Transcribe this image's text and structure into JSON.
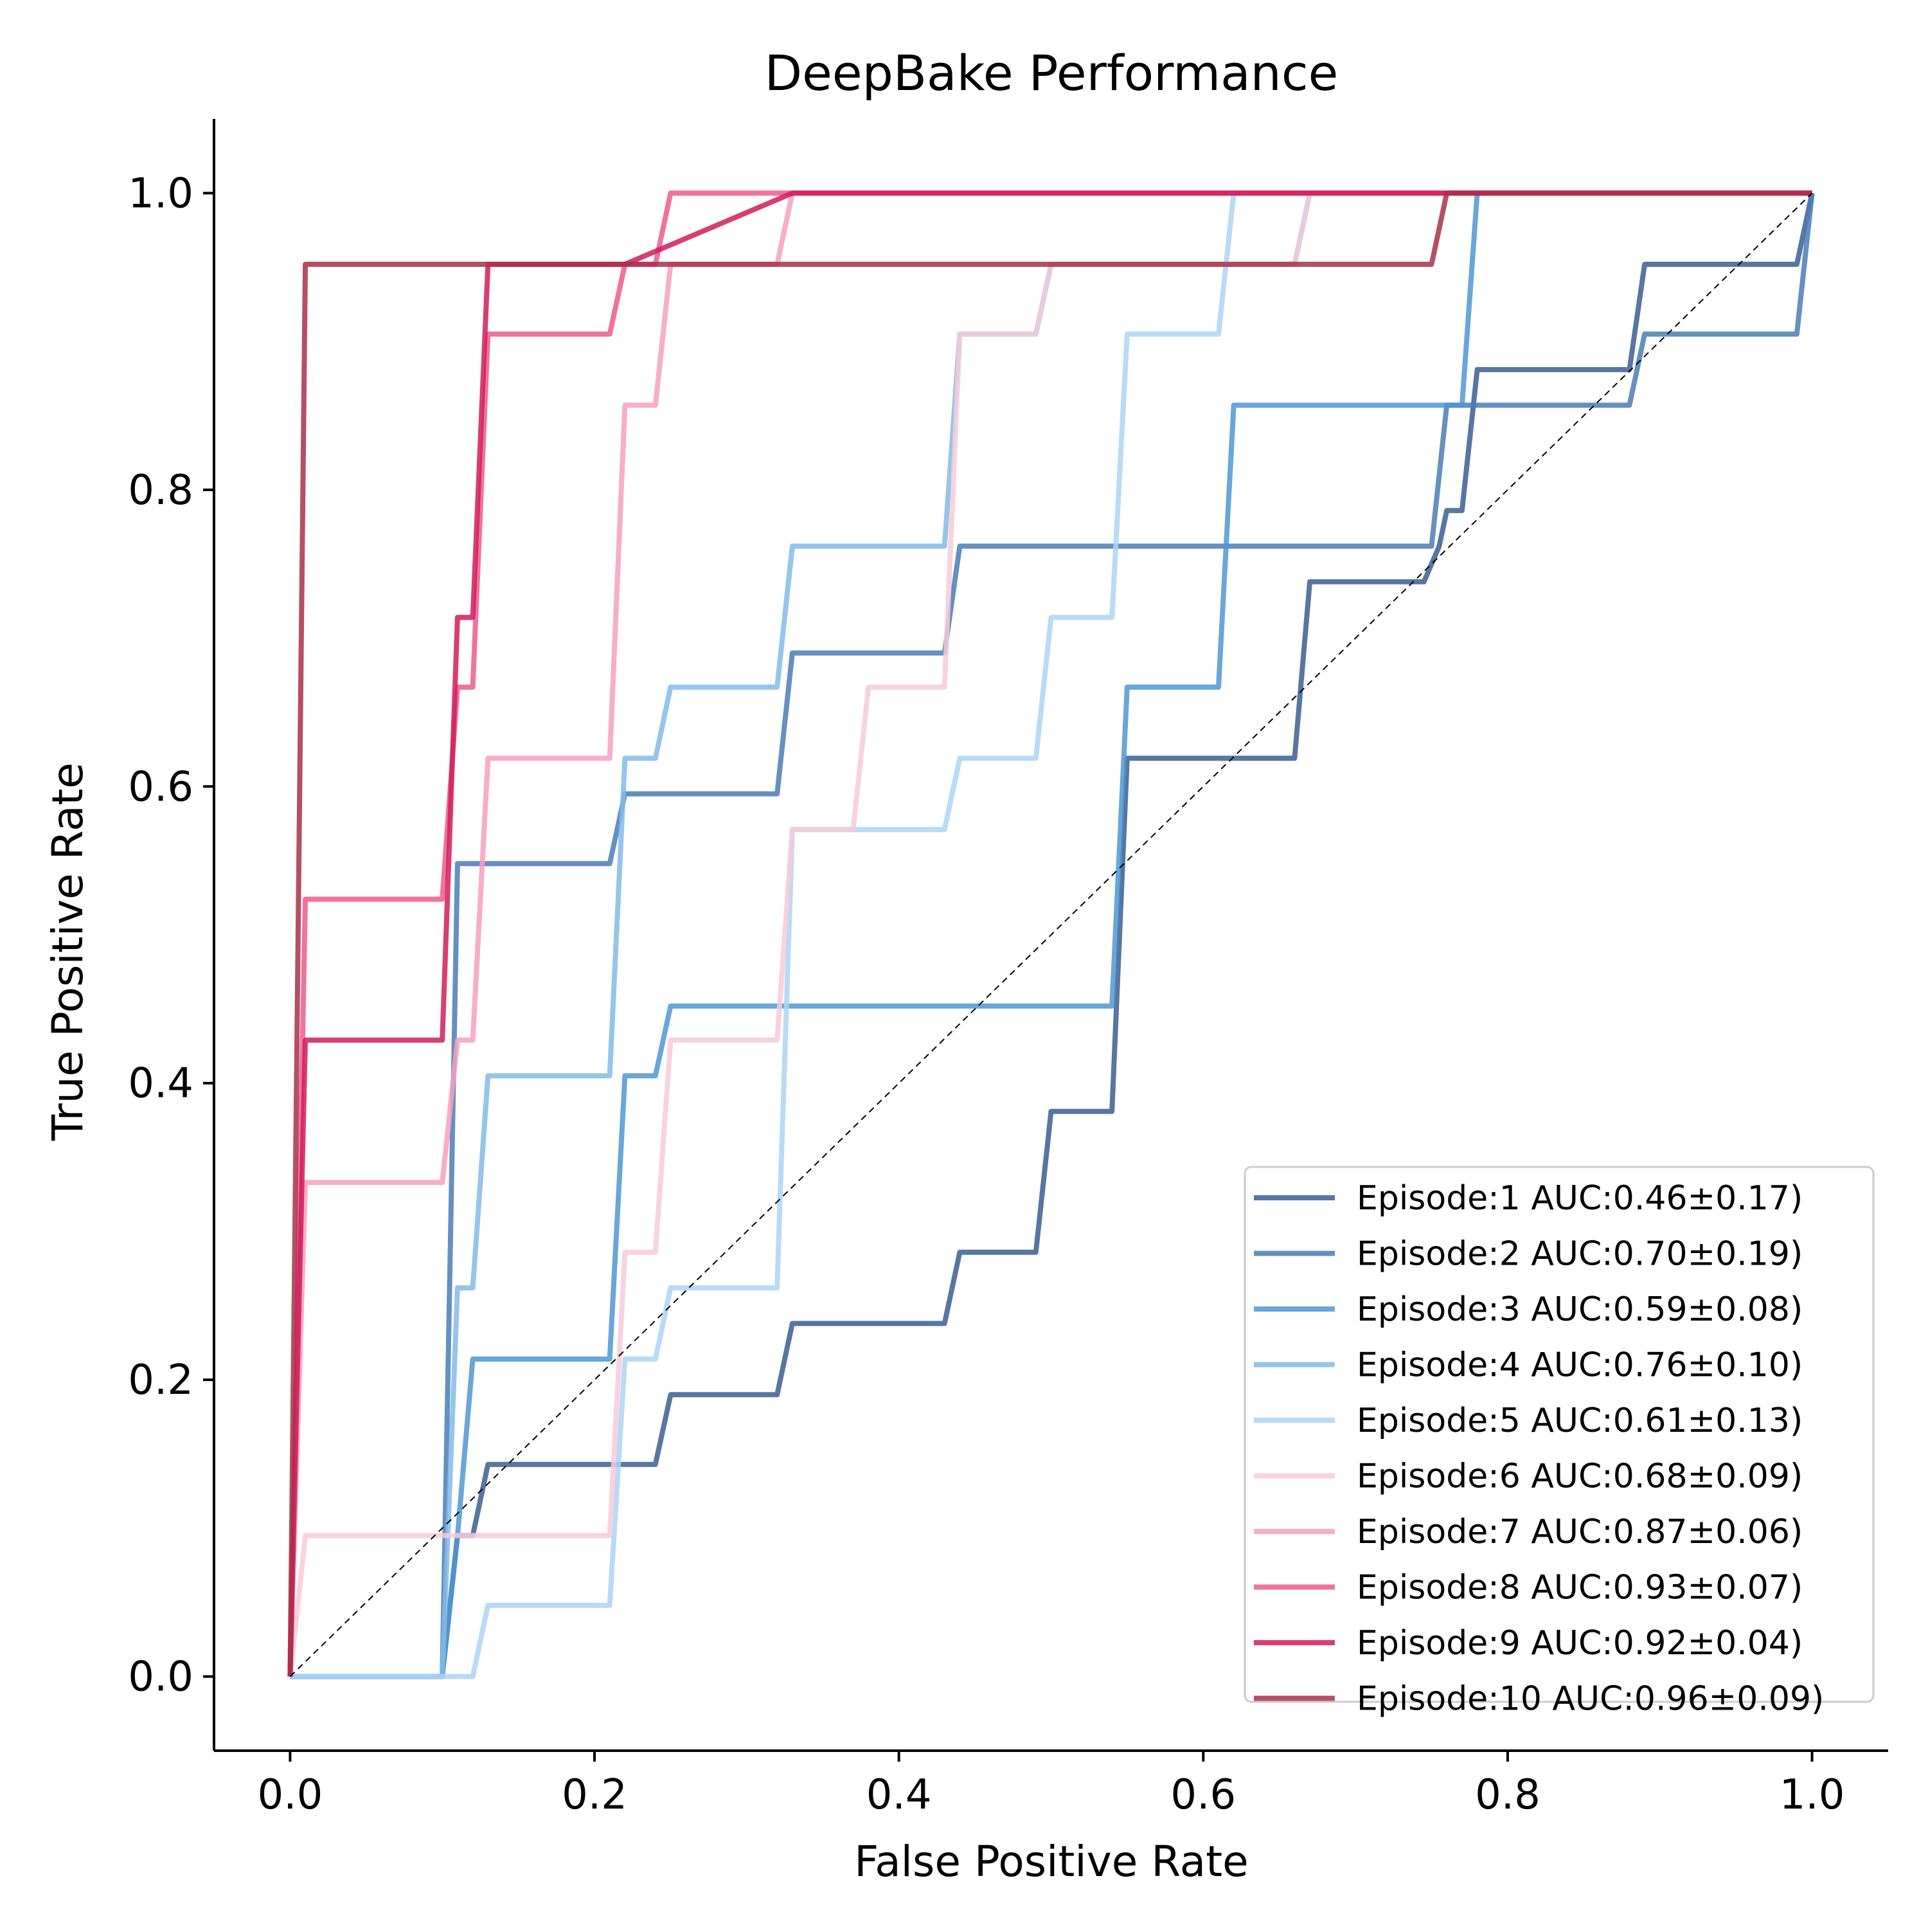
{
  "chart_data": {
    "type": "line",
    "title": "DeepBake Performance",
    "xlabel": "False Positive Rate",
    "ylabel": "True Positive Rate",
    "xlim": [
      -0.05,
      1.05
    ],
    "ylim": [
      -0.05,
      1.05
    ],
    "xticks": [
      "0.0",
      "0.2",
      "0.4",
      "0.6",
      "0.8",
      "1.0"
    ],
    "yticks": [
      "0.0",
      "0.2",
      "0.4",
      "0.6",
      "0.8",
      "1.0"
    ],
    "grid": false,
    "legend_position": "lower-right",
    "diagonal_reference": true,
    "series": [
      {
        "name": "Episode:1 AUC:0.46±0.17)",
        "color": "#3a5f91",
        "points": [
          [
            0,
            0
          ],
          [
            0.1,
            0
          ],
          [
            0.11,
            0.095
          ],
          [
            0.12,
            0.095
          ],
          [
            0.13,
            0.143
          ],
          [
            0.24,
            0.143
          ],
          [
            0.25,
            0.19
          ],
          [
            0.32,
            0.19
          ],
          [
            0.33,
            0.238
          ],
          [
            0.43,
            0.238
          ],
          [
            0.44,
            0.286
          ],
          [
            0.49,
            0.286
          ],
          [
            0.5,
            0.381
          ],
          [
            0.54,
            0.381
          ],
          [
            0.55,
            0.619
          ],
          [
            0.66,
            0.619
          ],
          [
            0.67,
            0.738
          ],
          [
            0.745,
            0.738
          ],
          [
            0.755,
            0.762
          ],
          [
            0.76,
            0.786
          ],
          [
            0.77,
            0.786
          ],
          [
            0.78,
            0.881
          ],
          [
            0.88,
            0.881
          ],
          [
            0.89,
            0.952
          ],
          [
            0.99,
            0.952
          ],
          [
            1.0,
            1.0
          ]
        ]
      },
      {
        "name": "Episode:2 AUC:0.70±0.19)",
        "color": "#4a7db5",
        "points": [
          [
            0,
            0
          ],
          [
            0.1,
            0
          ],
          [
            0.11,
            0.548
          ],
          [
            0.21,
            0.548
          ],
          [
            0.22,
            0.595
          ],
          [
            0.32,
            0.595
          ],
          [
            0.33,
            0.69
          ],
          [
            0.43,
            0.69
          ],
          [
            0.44,
            0.762
          ],
          [
            0.75,
            0.762
          ],
          [
            0.76,
            0.857
          ],
          [
            0.88,
            0.857
          ],
          [
            0.89,
            0.905
          ],
          [
            0.99,
            0.905
          ],
          [
            1.0,
            1.0
          ]
        ]
      },
      {
        "name": "Episode:3 AUC:0.59±0.08)",
        "color": "#4f97d4",
        "points": [
          [
            0,
            0
          ],
          [
            0.1,
            0
          ],
          [
            0.11,
            0.095
          ],
          [
            0.12,
            0.214
          ],
          [
            0.21,
            0.214
          ],
          [
            0.22,
            0.405
          ],
          [
            0.24,
            0.405
          ],
          [
            0.25,
            0.452
          ],
          [
            0.54,
            0.452
          ],
          [
            0.55,
            0.667
          ],
          [
            0.61,
            0.667
          ],
          [
            0.62,
            0.857
          ],
          [
            0.77,
            0.857
          ],
          [
            0.78,
            1.0
          ],
          [
            1.0,
            1.0
          ]
        ]
      },
      {
        "name": "Episode:4 AUC:0.76±0.10)",
        "color": "#84bbe8",
        "points": [
          [
            0,
            0
          ],
          [
            0.1,
            0
          ],
          [
            0.11,
            0.262
          ],
          [
            0.12,
            0.262
          ],
          [
            0.13,
            0.405
          ],
          [
            0.21,
            0.405
          ],
          [
            0.22,
            0.619
          ],
          [
            0.24,
            0.619
          ],
          [
            0.25,
            0.667
          ],
          [
            0.32,
            0.667
          ],
          [
            0.33,
            0.762
          ],
          [
            0.43,
            0.762
          ],
          [
            0.44,
            0.905
          ],
          [
            0.49,
            0.905
          ],
          [
            0.5,
            0.952
          ],
          [
            0.66,
            0.952
          ],
          [
            0.67,
            1.0
          ],
          [
            1.0,
            1.0
          ]
        ]
      },
      {
        "name": "Episode:5 AUC:0.61±0.13)",
        "color": "#acd5f6",
        "points": [
          [
            0,
            0
          ],
          [
            0.12,
            0
          ],
          [
            0.13,
            0.048
          ],
          [
            0.21,
            0.048
          ],
          [
            0.22,
            0.214
          ],
          [
            0.24,
            0.214
          ],
          [
            0.25,
            0.262
          ],
          [
            0.32,
            0.262
          ],
          [
            0.33,
            0.571
          ],
          [
            0.43,
            0.571
          ],
          [
            0.44,
            0.619
          ],
          [
            0.49,
            0.619
          ],
          [
            0.5,
            0.714
          ],
          [
            0.54,
            0.714
          ],
          [
            0.55,
            0.905
          ],
          [
            0.61,
            0.905
          ],
          [
            0.62,
            1.0
          ],
          [
            1.0,
            1.0
          ]
        ]
      },
      {
        "name": "Episode:6 AUC:0.68±0.09)",
        "color": "#f7cbd9",
        "points": [
          [
            0,
            0
          ],
          [
            0.01,
            0.095
          ],
          [
            0.21,
            0.095
          ],
          [
            0.22,
            0.286
          ],
          [
            0.24,
            0.286
          ],
          [
            0.25,
            0.429
          ],
          [
            0.32,
            0.429
          ],
          [
            0.33,
            0.571
          ],
          [
            0.37,
            0.571
          ],
          [
            0.38,
            0.667
          ],
          [
            0.43,
            0.667
          ],
          [
            0.44,
            0.905
          ],
          [
            0.49,
            0.905
          ],
          [
            0.5,
            0.952
          ],
          [
            0.66,
            0.952
          ],
          [
            0.67,
            1.0
          ],
          [
            1.0,
            1.0
          ]
        ]
      },
      {
        "name": "Episode:7 AUC:0.87±0.06)",
        "color": "#f79fbf",
        "points": [
          [
            0,
            0
          ],
          [
            0.01,
            0.333
          ],
          [
            0.1,
            0.333
          ],
          [
            0.11,
            0.429
          ],
          [
            0.12,
            0.429
          ],
          [
            0.13,
            0.619
          ],
          [
            0.21,
            0.619
          ],
          [
            0.22,
            0.857
          ],
          [
            0.24,
            0.857
          ],
          [
            0.25,
            0.952
          ],
          [
            0.32,
            0.952
          ],
          [
            0.33,
            1.0
          ],
          [
            1.0,
            1.0
          ]
        ]
      },
      {
        "name": "Episode:8 AUC:0.93±0.07)",
        "color": "#ec5b8d",
        "points": [
          [
            0,
            0
          ],
          [
            0.01,
            0.524
          ],
          [
            0.1,
            0.524
          ],
          [
            0.11,
            0.667
          ],
          [
            0.12,
            0.667
          ],
          [
            0.13,
            0.905
          ],
          [
            0.21,
            0.905
          ],
          [
            0.22,
            0.952
          ],
          [
            0.24,
            0.952
          ],
          [
            0.25,
            1.0
          ],
          [
            1.0,
            1.0
          ]
        ]
      },
      {
        "name": "Episode:9 AUC:0.92±0.04)",
        "color": "#d01c5b",
        "points": [
          [
            0,
            0
          ],
          [
            0.01,
            0.429
          ],
          [
            0.1,
            0.429
          ],
          [
            0.11,
            0.714
          ],
          [
            0.12,
            0.714
          ],
          [
            0.13,
            0.952
          ],
          [
            0.22,
            0.952
          ],
          [
            0.33,
            1.0
          ],
          [
            1.0,
            1.0
          ]
        ]
      },
      {
        "name": "Episode:10 AUC:0.96±0.09)",
        "color": "#a8304a",
        "points": [
          [
            0,
            0
          ],
          [
            0.01,
            0.952
          ],
          [
            0.75,
            0.952
          ],
          [
            0.76,
            1.0
          ],
          [
            1.0,
            1.0
          ]
        ]
      }
    ]
  }
}
